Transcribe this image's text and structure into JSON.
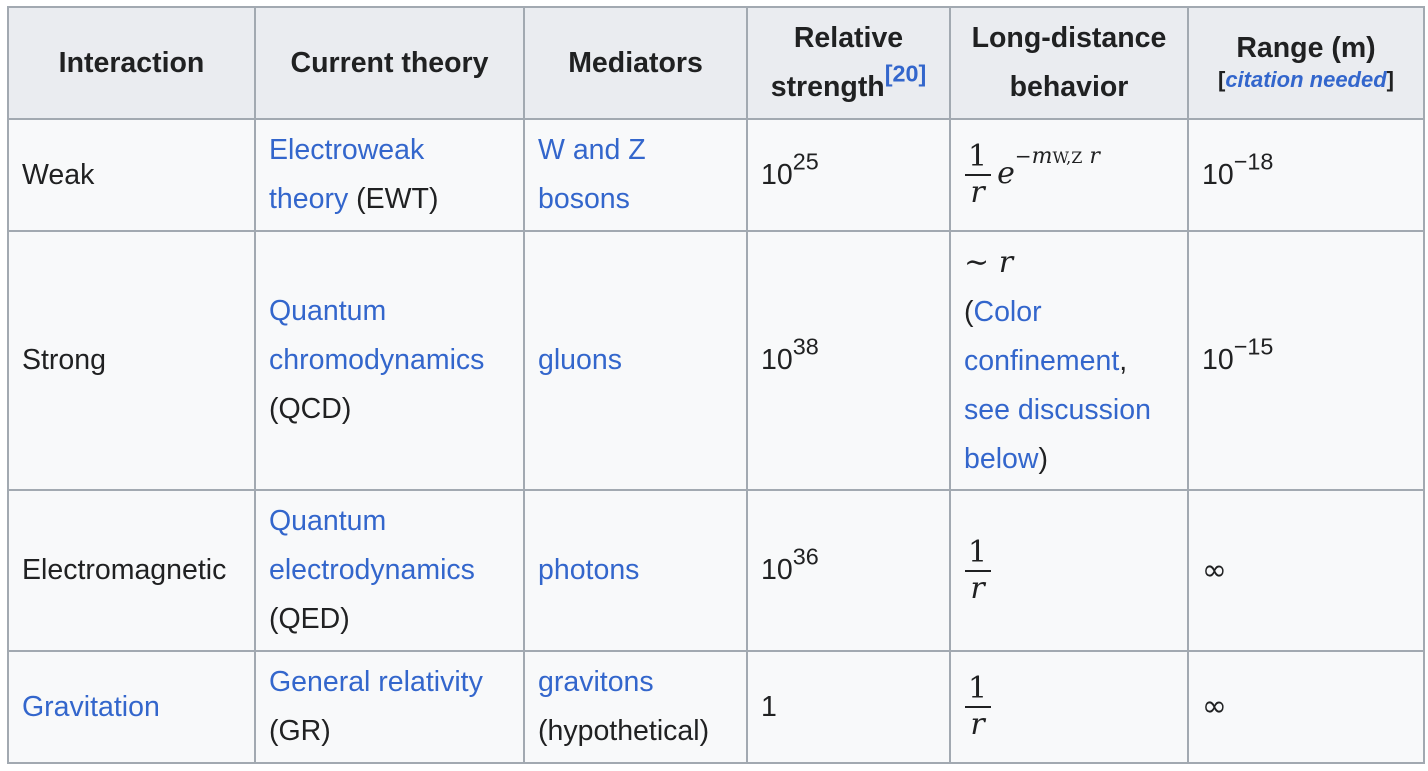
{
  "headers": {
    "interaction": "Interaction",
    "current_theory": "Current theory",
    "mediators": "Mediators",
    "relative_strength_1": "Relative",
    "relative_strength_2": "strength",
    "relative_strength_ref": "[20]",
    "long_distance_1": "Long-distance",
    "long_distance_2": "behavior",
    "range": "Range (m)",
    "citation_open": "[",
    "citation_needed": "citation needed",
    "citation_close": "]"
  },
  "rows": [
    {
      "interaction": "Weak",
      "theory_link_1": "Electroweak",
      "theory_link_2": "theory",
      "theory_abbr": " (EWT)",
      "mediator_1": "W and Z",
      "mediator_2": "bosons",
      "strength_base": "10",
      "strength_exp": "25",
      "behavior_num": "1",
      "behavior_den": "r",
      "behavior_e": "e",
      "behavior_exp_minus": "−",
      "behavior_exp_m": "m",
      "behavior_exp_sub": "W,Z",
      "behavior_exp_r": "r",
      "range_base": "10",
      "range_exp": "−18"
    },
    {
      "interaction": "Strong",
      "theory_link_1": "Quantum",
      "theory_link_2": "chromodynamics",
      "theory_abbr": "(QCD)",
      "mediator": "gluons",
      "strength_base": "10",
      "strength_exp": "38",
      "behavior_tilde": "∼",
      "behavior_r": "r",
      "behavior_open": "(",
      "behavior_link_1a": "Color",
      "behavior_link_1b": "confinement",
      "behavior_comma": ",",
      "behavior_link_2a": "see discussion",
      "behavior_link_2b": "below",
      "behavior_close": ")",
      "range_base": "10",
      "range_exp": "−15"
    },
    {
      "interaction": "Electromagnetic",
      "theory_link_1": "Quantum",
      "theory_link_2": "electrodynamics",
      "theory_abbr": "(QED)",
      "mediator": "photons",
      "strength_base": "10",
      "strength_exp": "36",
      "behavior_num": "1",
      "behavior_den": "r",
      "range": "∞"
    },
    {
      "interaction": "Gravitation",
      "theory_link": "General relativity",
      "theory_abbr": "(GR)",
      "mediator_1": "gravitons",
      "mediator_2": "(hypothetical)",
      "strength": "1",
      "behavior_num": "1",
      "behavior_den": "r",
      "range": "∞"
    }
  ],
  "colors": {
    "link": "#3366cc",
    "header_bg": "#eaecf0",
    "cell_bg": "#f8f9fa",
    "border": "#a2a9b1",
    "text": "#202122"
  }
}
